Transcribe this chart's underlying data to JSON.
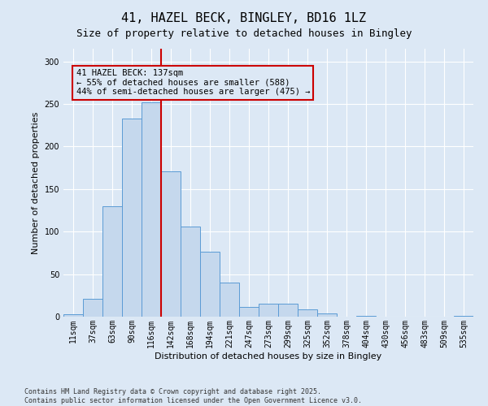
{
  "title_line1": "41, HAZEL BECK, BINGLEY, BD16 1LZ",
  "title_line2": "Size of property relative to detached houses in Bingley",
  "xlabel": "Distribution of detached houses by size in Bingley",
  "ylabel": "Number of detached properties",
  "footnote": "Contains HM Land Registry data © Crown copyright and database right 2025.\nContains public sector information licensed under the Open Government Licence v3.0.",
  "bar_labels": [
    "11sqm",
    "37sqm",
    "63sqm",
    "90sqm",
    "116sqm",
    "142sqm",
    "168sqm",
    "194sqm",
    "221sqm",
    "247sqm",
    "273sqm",
    "299sqm",
    "325sqm",
    "352sqm",
    "378sqm",
    "404sqm",
    "430sqm",
    "456sqm",
    "483sqm",
    "509sqm",
    "535sqm"
  ],
  "bar_values": [
    3,
    21,
    130,
    233,
    252,
    171,
    106,
    76,
    40,
    11,
    15,
    15,
    9,
    4,
    0,
    1,
    0,
    0,
    0,
    0,
    1
  ],
  "bar_color": "#c5d8ed",
  "bar_edge_color": "#5b9bd5",
  "vline_x_index": 5.0,
  "vline_color": "#cc0000",
  "annotation_text": "41 HAZEL BECK: 137sqm\n← 55% of detached houses are smaller (588)\n44% of semi-detached houses are larger (475) →",
  "annotation_box_color": "#cc0000",
  "ylim": [
    0,
    315
  ],
  "yticks": [
    0,
    50,
    100,
    150,
    200,
    250,
    300
  ],
  "background_color": "#dce8f5",
  "grid_color": "#ffffff",
  "title_fontsize": 11,
  "subtitle_fontsize": 9,
  "label_fontsize": 8,
  "tick_fontsize": 7,
  "annot_fontsize": 7.5,
  "footnote_fontsize": 6
}
